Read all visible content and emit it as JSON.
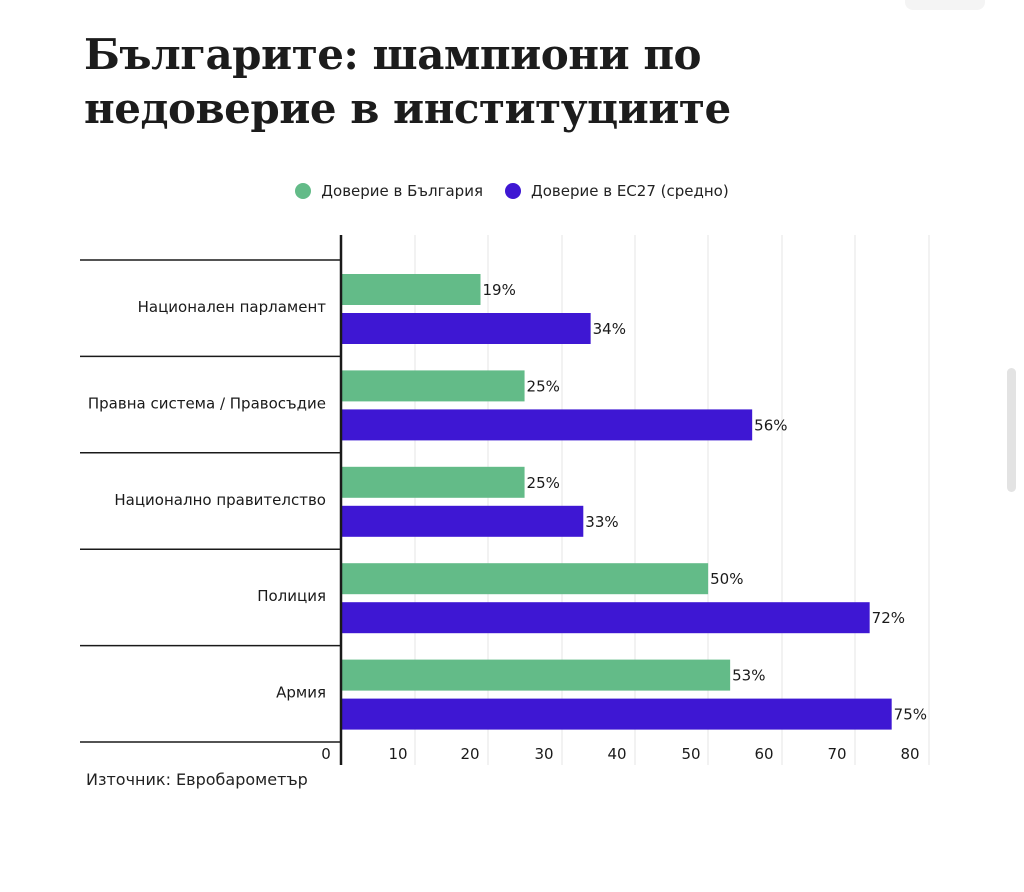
{
  "title_lines": [
    "Българите: шампиони по",
    "недоверие в институциите"
  ],
  "source": "Източник: Евробарометър",
  "colors": {
    "bulgaria": "#63bb88",
    "eu27": "#3e17d3",
    "axis": "#1a1a1a",
    "grid": "#e6e6e6"
  },
  "chart_data": {
    "type": "bar",
    "orientation": "horizontal",
    "categories": [
      "Национален парламент",
      "Правна система / Правосъдие",
      "Национално правителство",
      "Полиция",
      "Армия"
    ],
    "series": [
      {
        "name": "Доверие в България",
        "values": [
          19,
          25,
          25,
          50,
          53
        ],
        "labels": [
          "19%",
          "25%",
          "25%",
          "50%",
          "53%"
        ]
      },
      {
        "name": "Доверие в ЕС27 (средно)",
        "values": [
          34,
          56,
          33,
          72,
          75
        ],
        "labels": [
          "34%",
          "56%",
          "33%",
          "72%",
          "75%"
        ]
      }
    ],
    "xlim": [
      0,
      80
    ],
    "ticks": [
      0,
      10,
      20,
      30,
      40,
      50,
      60,
      70,
      80
    ],
    "grid": true,
    "legend_position": "top-center"
  }
}
